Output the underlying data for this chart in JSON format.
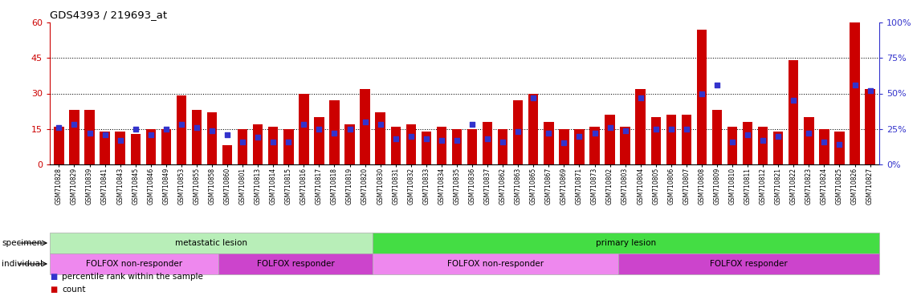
{
  "title": "GDS4393 / 219693_at",
  "samples": [
    "GSM710828",
    "GSM710829",
    "GSM710839",
    "GSM710841",
    "GSM710843",
    "GSM710845",
    "GSM710846",
    "GSM710849",
    "GSM710853",
    "GSM710855",
    "GSM710858",
    "GSM710860",
    "GSM710801",
    "GSM710813",
    "GSM710814",
    "GSM710815",
    "GSM710816",
    "GSM710817",
    "GSM710818",
    "GSM710819",
    "GSM710820",
    "GSM710830",
    "GSM710831",
    "GSM710832",
    "GSM710833",
    "GSM710834",
    "GSM710835",
    "GSM710836",
    "GSM710837",
    "GSM710862",
    "GSM710863",
    "GSM710865",
    "GSM710867",
    "GSM710869",
    "GSM710871",
    "GSM710873",
    "GSM710802",
    "GSM710803",
    "GSM710804",
    "GSM710805",
    "GSM710806",
    "GSM710807",
    "GSM710808",
    "GSM710809",
    "GSM710810",
    "GSM710811",
    "GSM710812",
    "GSM710821",
    "GSM710822",
    "GSM710823",
    "GSM710824",
    "GSM710825",
    "GSM710826",
    "GSM710827"
  ],
  "count_values": [
    16,
    23,
    23,
    14,
    14,
    13,
    15,
    15,
    29,
    23,
    22,
    8,
    15,
    17,
    16,
    15,
    30,
    20,
    27,
    17,
    32,
    22,
    16,
    17,
    14,
    16,
    15,
    15,
    18,
    15,
    27,
    30,
    18,
    15,
    15,
    16,
    21,
    16,
    32,
    20,
    21,
    21,
    57,
    23,
    16,
    18,
    16,
    14,
    44,
    20,
    15,
    14,
    60,
    32
  ],
  "percentile_values": [
    26,
    28,
    22,
    21,
    17,
    25,
    21,
    25,
    28,
    26,
    24,
    21,
    16,
    19,
    16,
    16,
    28,
    25,
    22,
    25,
    30,
    28,
    18,
    20,
    18,
    17,
    17,
    28,
    18,
    16,
    23,
    47,
    22,
    15,
    20,
    22,
    26,
    24,
    47,
    25,
    25,
    25,
    50,
    56,
    16,
    21,
    17,
    20,
    45,
    22,
    16,
    14,
    56,
    52
  ],
  "ylim_left": [
    0,
    60
  ],
  "ylim_right": [
    0,
    100
  ],
  "yticks_left": [
    0,
    15,
    30,
    45,
    60
  ],
  "yticks_right": [
    0,
    25,
    50,
    75,
    100
  ],
  "ytick_labels_left": [
    "0",
    "15",
    "30",
    "45",
    "60"
  ],
  "ytick_labels_right": [
    "0%",
    "25%",
    "50%",
    "75%",
    "100%"
  ],
  "hlines": [
    15,
    30,
    45
  ],
  "bar_color": "#cc0000",
  "dot_color": "#3333cc",
  "specimen_groups": [
    {
      "label": "metastatic lesion",
      "start": 0,
      "end": 21,
      "color": "#b8eeb8"
    },
    {
      "label": "primary lesion",
      "start": 21,
      "end": 54,
      "color": "#44dd44"
    }
  ],
  "individual_groups": [
    {
      "label": "FOLFOX non-responder",
      "start": 0,
      "end": 11,
      "color": "#ee88ee"
    },
    {
      "label": "FOLFOX responder",
      "start": 11,
      "end": 21,
      "color": "#cc44cc"
    },
    {
      "label": "FOLFOX non-responder",
      "start": 21,
      "end": 37,
      "color": "#ee88ee"
    },
    {
      "label": "FOLFOX responder",
      "start": 37,
      "end": 54,
      "color": "#cc44cc"
    }
  ],
  "bg_color": "#ffffff",
  "legend_items": [
    {
      "label": "count",
      "color": "#cc0000"
    },
    {
      "label": "percentile rank within the sample",
      "color": "#3333cc"
    }
  ],
  "specimen_label": "specimen",
  "individual_label": "individual"
}
